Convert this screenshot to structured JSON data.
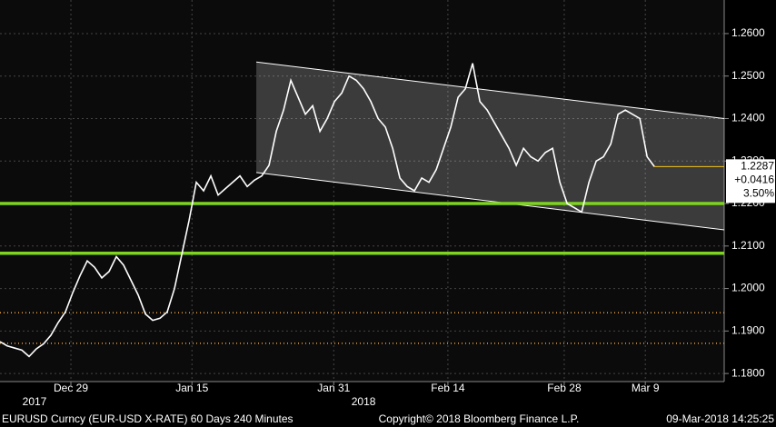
{
  "chart_data": {
    "type": "line",
    "footer_left": "EURUSD Curncy (EUR-USD X-RATE) 60 Days 240 Minutes",
    "footer_center": "Copyright© 2018 Bloomberg Finance L.P.",
    "footer_right": "09-Mar-2018 14:25:25",
    "x": [
      0,
      1,
      2,
      3,
      4,
      5,
      6,
      7,
      8,
      9,
      10,
      11,
      12,
      13,
      14,
      15,
      16,
      17,
      18,
      19,
      20,
      21,
      22,
      23,
      24,
      25,
      26,
      27,
      28,
      29,
      30,
      31,
      32,
      33,
      34,
      35,
      36,
      37,
      38,
      39,
      40,
      41,
      42,
      43,
      44,
      45,
      46,
      47,
      48,
      49,
      50,
      51,
      52,
      53,
      54,
      55,
      56,
      57,
      58,
      59,
      60,
      61,
      62,
      63,
      64,
      65,
      66,
      67,
      68,
      69,
      70,
      71,
      72,
      73,
      74,
      75,
      76,
      77,
      78,
      79,
      80,
      81,
      82,
      83,
      84,
      85,
      86,
      87,
      88,
      89,
      90
    ],
    "series": [
      {
        "name": "EURUSD",
        "color": "#ffffff",
        "values": [
          1.1875,
          1.1865,
          1.186,
          1.1855,
          1.184,
          1.1858,
          1.187,
          1.189,
          1.192,
          1.1945,
          1.199,
          1.203,
          1.2065,
          1.205,
          1.2025,
          1.204,
          1.2075,
          1.2055,
          1.202,
          1.1985,
          1.194,
          1.1925,
          1.193,
          1.1945,
          1.2,
          1.208,
          1.216,
          1.225,
          1.223,
          1.2265,
          1.222,
          1.2235,
          1.225,
          1.2265,
          1.224,
          1.2255,
          1.2265,
          1.229,
          1.237,
          1.242,
          1.249,
          1.245,
          1.241,
          1.243,
          1.237,
          1.24,
          1.244,
          1.246,
          1.25,
          1.249,
          1.247,
          1.244,
          1.24,
          1.238,
          1.233,
          1.226,
          1.224,
          1.223,
          1.226,
          1.225,
          1.228,
          1.233,
          1.238,
          1.245,
          1.247,
          1.253,
          1.244,
          1.242,
          1.239,
          1.236,
          1.233,
          1.229,
          1.233,
          1.231,
          1.23,
          1.232,
          1.233,
          1.225,
          1.22,
          1.219,
          1.218,
          1.225,
          1.23,
          1.231,
          1.234,
          1.241,
          1.242,
          1.241,
          1.24,
          1.231,
          1.2287
        ]
      }
    ],
    "xlim": [
      0,
      99.6
    ],
    "xticks": [
      {
        "value": 9.75,
        "label": "Dec 29"
      },
      {
        "value": 26.4,
        "label": "Jan 15"
      },
      {
        "value": 45.9,
        "label": "Jan 31"
      },
      {
        "value": 61.6,
        "label": "Feb 14"
      },
      {
        "value": 77.6,
        "label": "Feb 28"
      },
      {
        "value": 88.75,
        "label": "Mar 9"
      }
    ],
    "year_labels": [
      {
        "value": 4.75,
        "label": "2017"
      },
      {
        "value": 50,
        "label": "2018"
      }
    ],
    "ylim": [
      1.1781,
      1.2679
    ],
    "yticks": [
      {
        "value": 1.18,
        "label": "1.1800"
      },
      {
        "value": 1.19,
        "label": "1.1900"
      },
      {
        "value": 1.2,
        "label": "1.2000"
      },
      {
        "value": 1.21,
        "label": "1.2100"
      },
      {
        "value": 1.22,
        "label": "1.2200"
      },
      {
        "value": 1.23,
        "label": "1.2300"
      },
      {
        "value": 1.24,
        "label": "1.2400"
      },
      {
        "value": 1.25,
        "label": "1.2500"
      },
      {
        "value": 1.26,
        "label": "1.2600"
      }
    ],
    "grid": true,
    "channel": {
      "x": [
        35.25,
        99.6
      ],
      "upper": [
        1.2533,
        1.24
      ],
      "lower": [
        1.2273,
        1.2138
      ],
      "color": "#ffffff"
    },
    "support_lines": {
      "values": [
        1.22,
        1.2083
      ],
      "color": "#7ed321"
    },
    "dotted_levels": {
      "values": [
        1.1943,
        1.1871
      ],
      "color": "#e8a040"
    },
    "last": {
      "value": 1.2287,
      "label": "1.2287",
      "change": "+0.0416",
      "change_pct": "3.50%",
      "color": "#f5c518"
    }
  }
}
